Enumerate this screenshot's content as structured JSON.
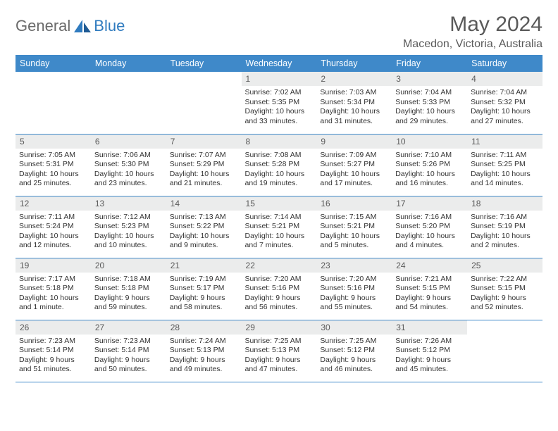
{
  "brand": {
    "general": "General",
    "blue": "Blue"
  },
  "title": "May 2024",
  "location": "Macedon, Victoria, Australia",
  "colors": {
    "header_bg": "#3f89c9",
    "header_text": "#ffffff",
    "daynum_bg": "#ebecec",
    "border": "#3f89c9",
    "title_color": "#5a5a5a",
    "logo_general": "#6a6a6a",
    "logo_blue": "#2f7bbf"
  },
  "weekdays": [
    "Sunday",
    "Monday",
    "Tuesday",
    "Wednesday",
    "Thursday",
    "Friday",
    "Saturday"
  ],
  "weeks": [
    [
      {
        "empty": true
      },
      {
        "empty": true
      },
      {
        "empty": true
      },
      {
        "day": "1",
        "sunrise": "Sunrise: 7:02 AM",
        "sunset": "Sunset: 5:35 PM",
        "daylight1": "Daylight: 10 hours",
        "daylight2": "and 33 minutes."
      },
      {
        "day": "2",
        "sunrise": "Sunrise: 7:03 AM",
        "sunset": "Sunset: 5:34 PM",
        "daylight1": "Daylight: 10 hours",
        "daylight2": "and 31 minutes."
      },
      {
        "day": "3",
        "sunrise": "Sunrise: 7:04 AM",
        "sunset": "Sunset: 5:33 PM",
        "daylight1": "Daylight: 10 hours",
        "daylight2": "and 29 minutes."
      },
      {
        "day": "4",
        "sunrise": "Sunrise: 7:04 AM",
        "sunset": "Sunset: 5:32 PM",
        "daylight1": "Daylight: 10 hours",
        "daylight2": "and 27 minutes."
      }
    ],
    [
      {
        "day": "5",
        "sunrise": "Sunrise: 7:05 AM",
        "sunset": "Sunset: 5:31 PM",
        "daylight1": "Daylight: 10 hours",
        "daylight2": "and 25 minutes."
      },
      {
        "day": "6",
        "sunrise": "Sunrise: 7:06 AM",
        "sunset": "Sunset: 5:30 PM",
        "daylight1": "Daylight: 10 hours",
        "daylight2": "and 23 minutes."
      },
      {
        "day": "7",
        "sunrise": "Sunrise: 7:07 AM",
        "sunset": "Sunset: 5:29 PM",
        "daylight1": "Daylight: 10 hours",
        "daylight2": "and 21 minutes."
      },
      {
        "day": "8",
        "sunrise": "Sunrise: 7:08 AM",
        "sunset": "Sunset: 5:28 PM",
        "daylight1": "Daylight: 10 hours",
        "daylight2": "and 19 minutes."
      },
      {
        "day": "9",
        "sunrise": "Sunrise: 7:09 AM",
        "sunset": "Sunset: 5:27 PM",
        "daylight1": "Daylight: 10 hours",
        "daylight2": "and 17 minutes."
      },
      {
        "day": "10",
        "sunrise": "Sunrise: 7:10 AM",
        "sunset": "Sunset: 5:26 PM",
        "daylight1": "Daylight: 10 hours",
        "daylight2": "and 16 minutes."
      },
      {
        "day": "11",
        "sunrise": "Sunrise: 7:11 AM",
        "sunset": "Sunset: 5:25 PM",
        "daylight1": "Daylight: 10 hours",
        "daylight2": "and 14 minutes."
      }
    ],
    [
      {
        "day": "12",
        "sunrise": "Sunrise: 7:11 AM",
        "sunset": "Sunset: 5:24 PM",
        "daylight1": "Daylight: 10 hours",
        "daylight2": "and 12 minutes."
      },
      {
        "day": "13",
        "sunrise": "Sunrise: 7:12 AM",
        "sunset": "Sunset: 5:23 PM",
        "daylight1": "Daylight: 10 hours",
        "daylight2": "and 10 minutes."
      },
      {
        "day": "14",
        "sunrise": "Sunrise: 7:13 AM",
        "sunset": "Sunset: 5:22 PM",
        "daylight1": "Daylight: 10 hours",
        "daylight2": "and 9 minutes."
      },
      {
        "day": "15",
        "sunrise": "Sunrise: 7:14 AM",
        "sunset": "Sunset: 5:21 PM",
        "daylight1": "Daylight: 10 hours",
        "daylight2": "and 7 minutes."
      },
      {
        "day": "16",
        "sunrise": "Sunrise: 7:15 AM",
        "sunset": "Sunset: 5:21 PM",
        "daylight1": "Daylight: 10 hours",
        "daylight2": "and 5 minutes."
      },
      {
        "day": "17",
        "sunrise": "Sunrise: 7:16 AM",
        "sunset": "Sunset: 5:20 PM",
        "daylight1": "Daylight: 10 hours",
        "daylight2": "and 4 minutes."
      },
      {
        "day": "18",
        "sunrise": "Sunrise: 7:16 AM",
        "sunset": "Sunset: 5:19 PM",
        "daylight1": "Daylight: 10 hours",
        "daylight2": "and 2 minutes."
      }
    ],
    [
      {
        "day": "19",
        "sunrise": "Sunrise: 7:17 AM",
        "sunset": "Sunset: 5:18 PM",
        "daylight1": "Daylight: 10 hours",
        "daylight2": "and 1 minute."
      },
      {
        "day": "20",
        "sunrise": "Sunrise: 7:18 AM",
        "sunset": "Sunset: 5:18 PM",
        "daylight1": "Daylight: 9 hours",
        "daylight2": "and 59 minutes."
      },
      {
        "day": "21",
        "sunrise": "Sunrise: 7:19 AM",
        "sunset": "Sunset: 5:17 PM",
        "daylight1": "Daylight: 9 hours",
        "daylight2": "and 58 minutes."
      },
      {
        "day": "22",
        "sunrise": "Sunrise: 7:20 AM",
        "sunset": "Sunset: 5:16 PM",
        "daylight1": "Daylight: 9 hours",
        "daylight2": "and 56 minutes."
      },
      {
        "day": "23",
        "sunrise": "Sunrise: 7:20 AM",
        "sunset": "Sunset: 5:16 PM",
        "daylight1": "Daylight: 9 hours",
        "daylight2": "and 55 minutes."
      },
      {
        "day": "24",
        "sunrise": "Sunrise: 7:21 AM",
        "sunset": "Sunset: 5:15 PM",
        "daylight1": "Daylight: 9 hours",
        "daylight2": "and 54 minutes."
      },
      {
        "day": "25",
        "sunrise": "Sunrise: 7:22 AM",
        "sunset": "Sunset: 5:15 PM",
        "daylight1": "Daylight: 9 hours",
        "daylight2": "and 52 minutes."
      }
    ],
    [
      {
        "day": "26",
        "sunrise": "Sunrise: 7:23 AM",
        "sunset": "Sunset: 5:14 PM",
        "daylight1": "Daylight: 9 hours",
        "daylight2": "and 51 minutes."
      },
      {
        "day": "27",
        "sunrise": "Sunrise: 7:23 AM",
        "sunset": "Sunset: 5:14 PM",
        "daylight1": "Daylight: 9 hours",
        "daylight2": "and 50 minutes."
      },
      {
        "day": "28",
        "sunrise": "Sunrise: 7:24 AM",
        "sunset": "Sunset: 5:13 PM",
        "daylight1": "Daylight: 9 hours",
        "daylight2": "and 49 minutes."
      },
      {
        "day": "29",
        "sunrise": "Sunrise: 7:25 AM",
        "sunset": "Sunset: 5:13 PM",
        "daylight1": "Daylight: 9 hours",
        "daylight2": "and 47 minutes."
      },
      {
        "day": "30",
        "sunrise": "Sunrise: 7:25 AM",
        "sunset": "Sunset: 5:12 PM",
        "daylight1": "Daylight: 9 hours",
        "daylight2": "and 46 minutes."
      },
      {
        "day": "31",
        "sunrise": "Sunrise: 7:26 AM",
        "sunset": "Sunset: 5:12 PM",
        "daylight1": "Daylight: 9 hours",
        "daylight2": "and 45 minutes."
      },
      {
        "empty": true
      }
    ]
  ]
}
